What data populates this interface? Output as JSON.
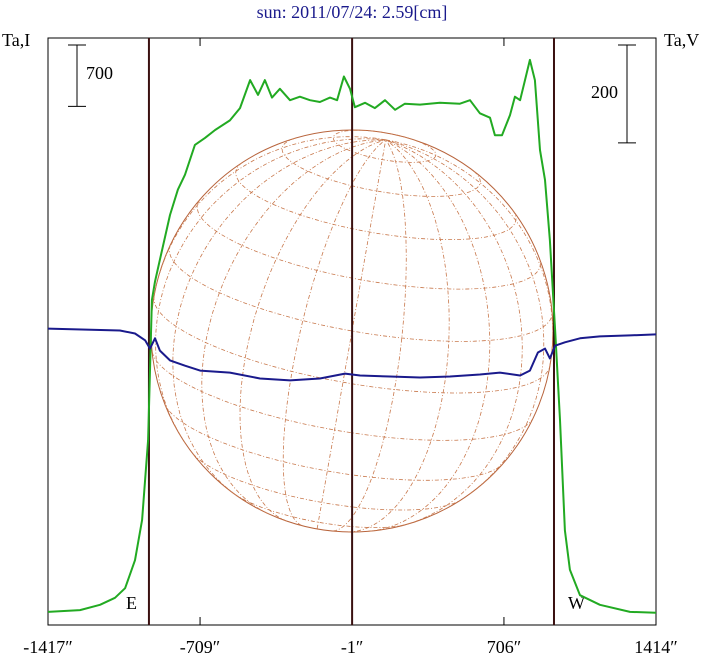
{
  "chart_data": {
    "type": "line",
    "title": "sun: 2011/07/24: 2.59[cm]",
    "y_label": "Ta,I",
    "y2_label": "Ta,V",
    "xlim": [
      -1417,
      1414
    ],
    "xticks": [
      {
        "value": -1417,
        "label": "-1417″"
      },
      {
        "value": -709,
        "label": "-709″"
      },
      {
        "value": -1,
        "label": "-1″"
      },
      {
        "value": 706,
        "label": "706″"
      },
      {
        "value": 1414,
        "label": "1414″"
      }
    ],
    "ylim": [
      0,
      6700
    ],
    "y2lim": [
      -600,
      600
    ],
    "scale_bars": [
      {
        "value": 700,
        "axis": "y"
      },
      {
        "value": 200,
        "axis": "y2"
      }
    ],
    "vlines": [
      {
        "x": -947,
        "label": "E"
      },
      {
        "x": -1
      },
      {
        "x": 939,
        "label": "W"
      }
    ],
    "series": [
      {
        "color": "#22aa22",
        "axis": "y",
        "x": [
          -1417,
          -1268,
          -1175,
          -1105,
          -1058,
          -1012,
          -979,
          -951,
          -933,
          -919,
          -896,
          -849,
          -812,
          -779,
          -733,
          -686,
          -639,
          -570,
          -523,
          -476,
          -439,
          -407,
          -374,
          -337,
          -290,
          -244,
          -197,
          -151,
          -104,
          -71,
          -39,
          -11,
          12,
          59,
          105,
          152,
          199,
          245,
          315,
          408,
          501,
          548,
          594,
          641,
          664,
          697,
          734,
          757,
          781,
          804,
          827,
          850,
          874,
          897,
          920,
          944,
          967,
          990,
          1013,
          1060,
          1153,
          1293,
          1414
        ],
        "values": [
          150,
          170,
          230,
          310,
          420,
          740,
          1200,
          2110,
          3710,
          3920,
          4170,
          4680,
          4970,
          5140,
          5480,
          5560,
          5650,
          5760,
          5900,
          6220,
          6050,
          6220,
          6020,
          6120,
          5990,
          6030,
          5990,
          5970,
          6020,
          5990,
          6260,
          6120,
          5910,
          5960,
          5900,
          5990,
          5880,
          5950,
          5940,
          5960,
          5950,
          5990,
          5840,
          5790,
          5590,
          5590,
          5820,
          6030,
          5990,
          6220,
          6450,
          6220,
          5420,
          5080,
          4390,
          3370,
          2340,
          1080,
          630,
          340,
          230,
          150,
          140
        ]
      },
      {
        "color": "#1a1a8c",
        "axis": "y2",
        "x": [
          -1417,
          -1082,
          -1012,
          -965,
          -942,
          -919,
          -896,
          -849,
          -779,
          -709,
          -570,
          -430,
          -290,
          -151,
          -34,
          36,
          175,
          315,
          455,
          594,
          687,
          781,
          827,
          864,
          897,
          920,
          944,
          990,
          1060,
          1153,
          1293,
          1414
        ],
        "values": [
          6,
          2,
          -4,
          -18,
          -35,
          -14,
          -39,
          -59,
          -70,
          -80,
          -84,
          -96,
          -100,
          -96,
          -86,
          -90,
          -92,
          -94,
          -92,
          -88,
          -84,
          -90,
          -80,
          -43,
          -35,
          -55,
          -29,
          -22,
          -14,
          -10,
          -8,
          -6
        ]
      }
    ]
  }
}
